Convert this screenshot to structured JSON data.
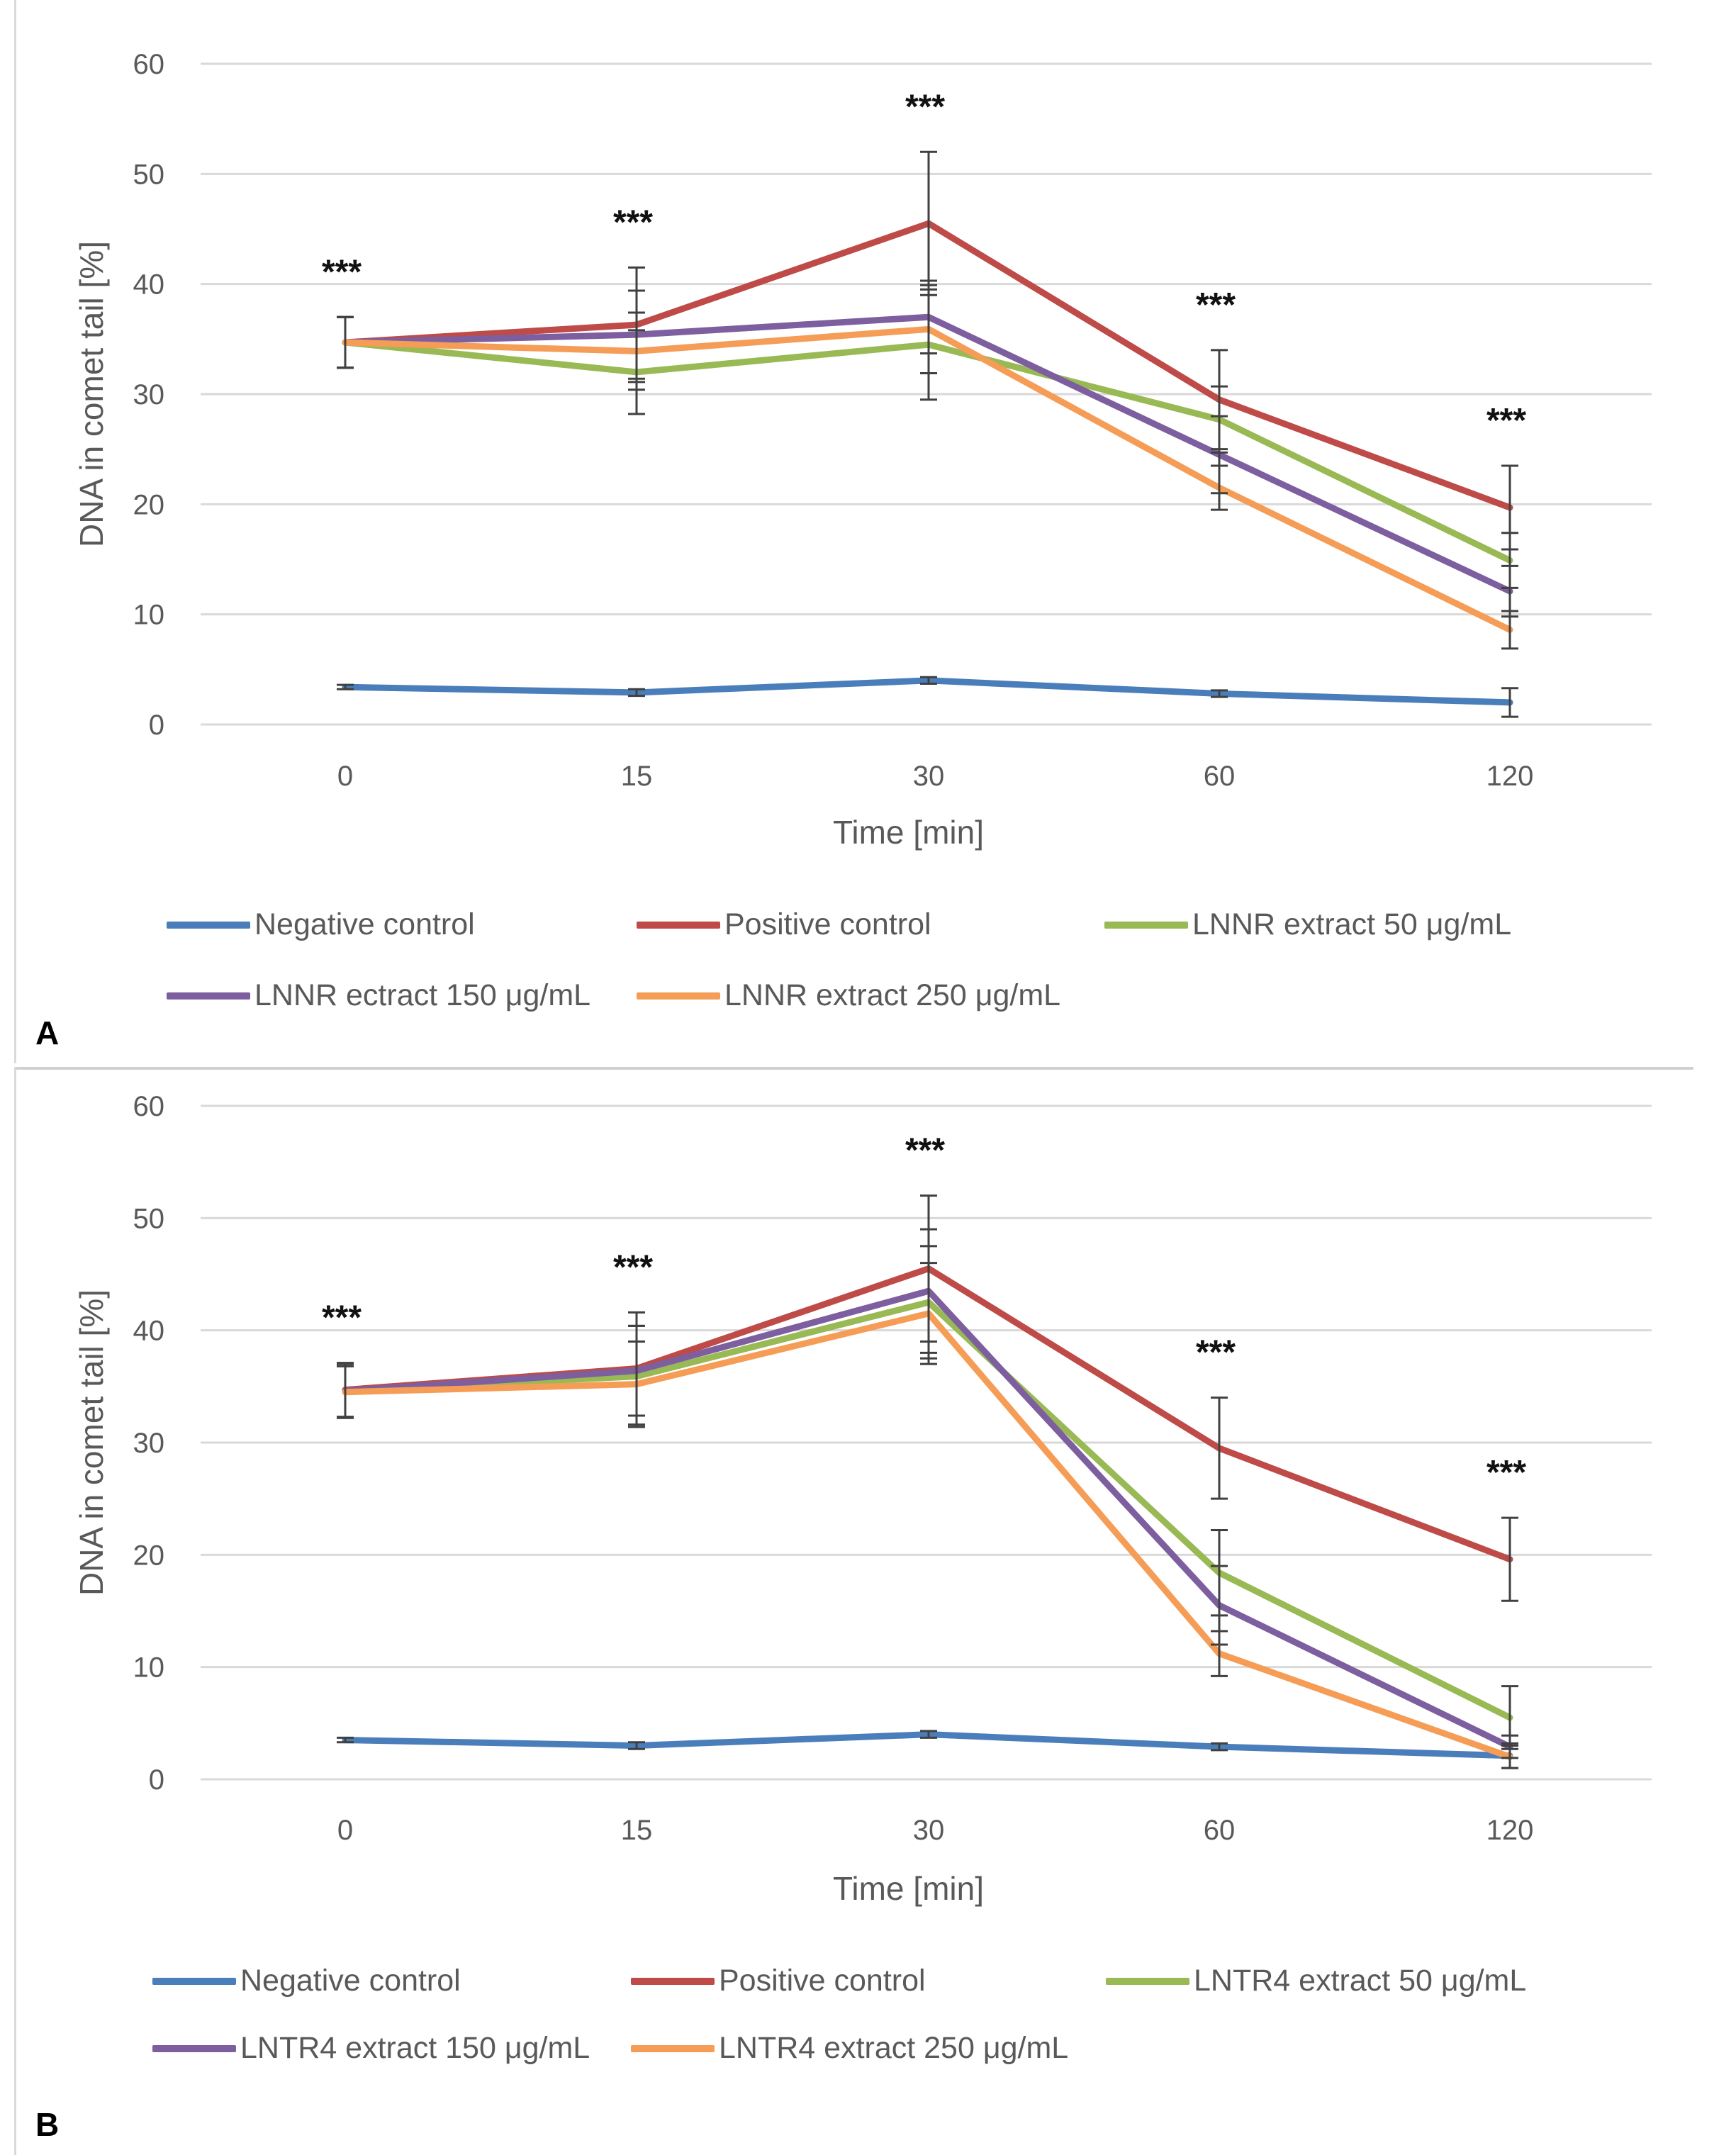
{
  "colors": {
    "negative": "#4a7ebb",
    "positive": "#be4b48",
    "c50": "#98b954",
    "c150": "#7d5fa0",
    "c250": "#f59d56",
    "grid": "#d9d9d9",
    "errbar": "#404040"
  },
  "chart_data": [
    {
      "type": "line",
      "panel_label": "A",
      "xlabel": "Time [min]",
      "ylabel": "DNA in comet tail [%]",
      "ylim": [
        0,
        60
      ],
      "yticks": [
        0,
        10,
        20,
        30,
        40,
        50,
        60
      ],
      "categories": [
        "0",
        "15",
        "30",
        "60",
        "120"
      ],
      "significance": [
        "***",
        "***",
        "***",
        "***",
        "***"
      ],
      "series": [
        {
          "name": "Negative control",
          "color_key": "negative",
          "values": [
            3.4,
            2.9,
            4.0,
            2.8,
            2.0
          ],
          "errors": [
            0.2,
            0.3,
            0.3,
            0.3,
            1.3
          ]
        },
        {
          "name": "Positive control",
          "color_key": "positive",
          "values": [
            34.7,
            36.3,
            45.5,
            29.5,
            19.7
          ],
          "errors": [
            2.3,
            5.2,
            6.5,
            4.5,
            3.8
          ]
        },
        {
          "name": "LNNR extract 50  μg/mL",
          "color_key": "c50",
          "values": [
            34.7,
            32.0,
            34.5,
            27.7,
            14.9
          ],
          "errors": [
            2.3,
            3.8,
            5.0,
            3.0,
            2.5
          ]
        },
        {
          "name": "LNNR ectract 150  μg/mL",
          "color_key": "c150",
          "values": [
            34.7,
            35.4,
            37.0,
            24.5,
            12.1
          ],
          "errors": [
            2.3,
            4.0,
            3.3,
            3.5,
            2.3
          ]
        },
        {
          "name": "LNNR extract 250 μg/mL",
          "color_key": "c250",
          "values": [
            34.7,
            33.9,
            35.9,
            21.5,
            8.6
          ],
          "errors": [
            2.3,
            3.5,
            4.0,
            2.0,
            1.7
          ]
        }
      ]
    },
    {
      "type": "line",
      "panel_label": "B",
      "xlabel": "Time [min]",
      "ylabel": "DNA in comet tail [%]",
      "ylim": [
        0,
        60
      ],
      "yticks": [
        0,
        10,
        20,
        30,
        40,
        50,
        60
      ],
      "categories": [
        "0",
        "15",
        "30",
        "60",
        "120"
      ],
      "significance": [
        "***",
        "***",
        "***",
        "***",
        "***"
      ],
      "series": [
        {
          "name": "Negative control",
          "color_key": "negative",
          "values": [
            3.5,
            3.0,
            4.0,
            2.9,
            2.1
          ],
          "errors": [
            0.2,
            0.3,
            0.3,
            0.3,
            1.1
          ]
        },
        {
          "name": "Positive control",
          "color_key": "positive",
          "values": [
            34.7,
            36.6,
            45.5,
            29.5,
            19.6
          ],
          "errors": [
            2.4,
            5.0,
            6.5,
            4.5,
            3.7
          ]
        },
        {
          "name": "LNTR4 extract 50  μg/mL",
          "color_key": "c50",
          "values": [
            34.6,
            35.9,
            42.5,
            18.4,
            5.5
          ],
          "errors": [
            2.4,
            4.5,
            5.0,
            3.8,
            2.8
          ]
        },
        {
          "name": "LNTR4 extract 150  μg/mL",
          "color_key": "c150",
          "values": [
            34.6,
            36.4,
            43.5,
            15.5,
            2.9
          ],
          "errors": [
            2.4,
            4.0,
            5.5,
            3.5,
            1.0
          ]
        },
        {
          "name": "LNTR4 extract 250  μg/mL",
          "color_key": "c250",
          "values": [
            34.5,
            35.2,
            41.5,
            11.2,
            2.0
          ],
          "errors": [
            2.3,
            3.8,
            4.5,
            2.0,
            1.0
          ]
        }
      ]
    }
  ]
}
